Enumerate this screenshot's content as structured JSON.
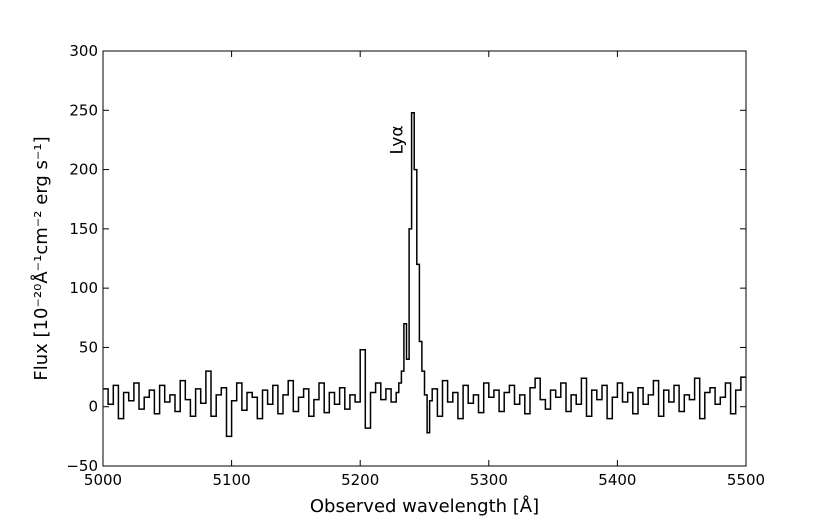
{
  "chart_data": {
    "type": "line",
    "title": "",
    "xlabel": "Observed wavelength [Å]",
    "ylabel": "Flux [10⁻²⁰Å⁻¹cm⁻² erg s⁻¹]",
    "xlim": [
      5000,
      5500
    ],
    "ylim": [
      -50,
      300
    ],
    "xticks": [
      5000,
      5100,
      5200,
      5300,
      5400,
      5500
    ],
    "yticks": [
      -50,
      0,
      50,
      100,
      150,
      200,
      250,
      300
    ],
    "grid": false,
    "line_color": "#000000",
    "step": true,
    "annotations": [
      {
        "text": "Lyα",
        "x": 5233,
        "y": 225,
        "rotation": "vertical"
      }
    ],
    "series": [
      {
        "x": [
          5000,
          5004,
          5008,
          5012,
          5016,
          5020,
          5024,
          5028,
          5032,
          5036,
          5040,
          5044,
          5048,
          5052,
          5056,
          5060,
          5064,
          5068,
          5072,
          5076,
          5080,
          5084,
          5088,
          5092,
          5096,
          5100,
          5104,
          5108,
          5112,
          5116,
          5120,
          5124,
          5128,
          5132,
          5136,
          5140,
          5144,
          5148,
          5152,
          5156,
          5160,
          5164,
          5168,
          5172,
          5176,
          5180,
          5184,
          5188,
          5192,
          5196,
          5200,
          5204,
          5208,
          5212,
          5216,
          5220,
          5224,
          5228,
          5230,
          5232,
          5234,
          5236,
          5238,
          5240,
          5242,
          5244,
          5246,
          5248,
          5250,
          5252,
          5254,
          5256,
          5260,
          5264,
          5268,
          5272,
          5276,
          5280,
          5284,
          5288,
          5292,
          5296,
          5300,
          5304,
          5308,
          5312,
          5316,
          5320,
          5324,
          5328,
          5332,
          5336,
          5340,
          5344,
          5348,
          5352,
          5356,
          5360,
          5364,
          5368,
          5372,
          5376,
          5380,
          5384,
          5388,
          5392,
          5396,
          5400,
          5404,
          5408,
          5412,
          5416,
          5420,
          5424,
          5428,
          5432,
          5436,
          5440,
          5444,
          5448,
          5452,
          5456,
          5460,
          5464,
          5468,
          5472,
          5476,
          5480,
          5484,
          5488,
          5492,
          5496
        ],
        "y": [
          15,
          2,
          18,
          -10,
          12,
          5,
          20,
          -2,
          8,
          14,
          -6,
          18,
          4,
          10,
          -4,
          22,
          6,
          -8,
          15,
          3,
          30,
          -8,
          10,
          16,
          -25,
          5,
          20,
          -3,
          12,
          8,
          -10,
          14,
          2,
          18,
          -6,
          10,
          22,
          -4,
          8,
          15,
          -8,
          6,
          20,
          -5,
          12,
          2,
          16,
          -2,
          10,
          4,
          48,
          -18,
          12,
          20,
          6,
          15,
          4,
          12,
          20,
          30,
          70,
          40,
          150,
          248,
          200,
          120,
          55,
          30,
          10,
          -22,
          5,
          15,
          -8,
          22,
          4,
          12,
          -10,
          18,
          3,
          10,
          -5,
          20,
          8,
          14,
          -4,
          12,
          18,
          2,
          10,
          -6,
          16,
          24,
          6,
          -2,
          14,
          8,
          20,
          -4,
          10,
          2,
          24,
          -8,
          14,
          6,
          18,
          -10,
          8,
          20,
          4,
          12,
          -6,
          16,
          2,
          10,
          22,
          -8,
          14,
          4,
          18,
          -4,
          10,
          6,
          24,
          -10,
          12,
          16,
          2,
          8,
          20,
          -6,
          14,
          25
        ]
      }
    ]
  }
}
